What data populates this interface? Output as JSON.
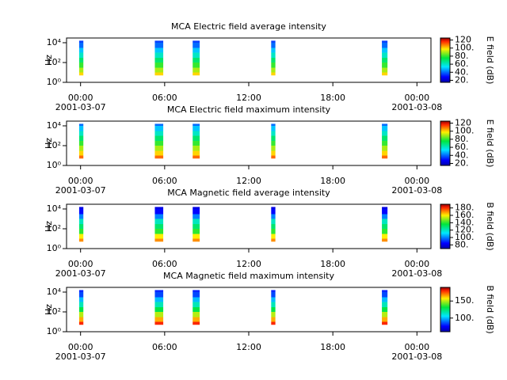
{
  "chart_data": [
    {
      "type": "spectrogram",
      "title": "MCA  Electric field average intensity",
      "ylabel": "Hz",
      "clabel": "E field (dB)",
      "xlim": [
        -1,
        25
      ],
      "xticks": [
        {
          "value": 0,
          "label": "00:00"
        },
        {
          "value": 6,
          "label": "06:00"
        },
        {
          "value": 12,
          "label": "12:00"
        },
        {
          "value": 18,
          "label": "18:00"
        },
        {
          "value": 24,
          "label": "00:00"
        }
      ],
      "x_date_labels": [
        {
          "value": 0,
          "label": "2001-03-07"
        },
        {
          "value": 24,
          "label": "2001-03-08"
        }
      ],
      "ylim": [
        1,
        30000
      ],
      "log_y": true,
      "yticks": [
        {
          "value": 1,
          "label": "10⁰"
        },
        {
          "value": 100,
          "label": "10²"
        },
        {
          "value": 10000,
          "label": "10⁴"
        }
      ],
      "clim": [
        15,
        125
      ],
      "cticks": [
        {
          "value": 20,
          "label": "20."
        },
        {
          "value": 40,
          "label": "40."
        },
        {
          "value": 60,
          "label": "60."
        },
        {
          "value": 80,
          "label": "80."
        },
        {
          "value": 100,
          "label": "100."
        },
        {
          "value": 120,
          "label": "120"
        }
      ],
      "bursts": [
        {
          "start": -0.1,
          "end": 0.2
        },
        {
          "start": 5.3,
          "end": 5.9
        },
        {
          "start": 8.0,
          "end": 8.5
        },
        {
          "start": 13.6,
          "end": 13.9
        },
        {
          "start": 21.5,
          "end": 21.9
        }
      ],
      "freq_bins": [
        5,
        10,
        30,
        100,
        300,
        1000,
        3000,
        10000,
        16000
      ],
      "values": [
        100,
        90,
        80,
        70,
        60,
        50,
        40,
        35
      ]
    },
    {
      "type": "spectrogram",
      "title": "MCA  Electric field maximum intensity",
      "ylabel": "Hz",
      "clabel": "E field (dB)",
      "xlim": [
        -1,
        25
      ],
      "xticks": [
        {
          "value": 0,
          "label": "00:00"
        },
        {
          "value": 6,
          "label": "06:00"
        },
        {
          "value": 12,
          "label": "12:00"
        },
        {
          "value": 18,
          "label": "18:00"
        },
        {
          "value": 24,
          "label": "00:00"
        }
      ],
      "x_date_labels": [
        {
          "value": 0,
          "label": "2001-03-07"
        },
        {
          "value": 24,
          "label": "2001-03-08"
        }
      ],
      "ylim": [
        1,
        30000
      ],
      "log_y": true,
      "yticks": [
        {
          "value": 1,
          "label": "10⁰"
        },
        {
          "value": 100,
          "label": "10²"
        },
        {
          "value": 10000,
          "label": "10⁴"
        }
      ],
      "clim": [
        15,
        125
      ],
      "cticks": [
        {
          "value": 20,
          "label": "20."
        },
        {
          "value": 40,
          "label": "40."
        },
        {
          "value": 60,
          "label": "60."
        },
        {
          "value": 80,
          "label": "80."
        },
        {
          "value": 100,
          "label": "100."
        },
        {
          "value": 120,
          "label": "120"
        }
      ],
      "bursts": [
        {
          "start": -0.1,
          "end": 0.2
        },
        {
          "start": 5.3,
          "end": 5.9
        },
        {
          "start": 8.0,
          "end": 8.5
        },
        {
          "start": 13.6,
          "end": 13.9
        },
        {
          "start": 21.5,
          "end": 21.9
        }
      ],
      "freq_bins": [
        5,
        10,
        30,
        100,
        300,
        1000,
        3000,
        10000,
        16000
      ],
      "values": [
        110,
        100,
        90,
        80,
        70,
        60,
        50,
        40
      ]
    },
    {
      "type": "spectrogram",
      "title": "MCA  Magnetic field average intensity",
      "ylabel": "Hz",
      "clabel": "B field (dB)",
      "xlim": [
        -1,
        25
      ],
      "xticks": [
        {
          "value": 0,
          "label": "00:00"
        },
        {
          "value": 6,
          "label": "06:00"
        },
        {
          "value": 12,
          "label": "12:00"
        },
        {
          "value": 18,
          "label": "18:00"
        },
        {
          "value": 24,
          "label": "00:00"
        }
      ],
      "x_date_labels": [
        {
          "value": 0,
          "label": "2001-03-07"
        },
        {
          "value": 24,
          "label": "2001-03-08"
        }
      ],
      "ylim": [
        1,
        30000
      ],
      "log_y": true,
      "yticks": [
        {
          "value": 1,
          "label": "10⁰"
        },
        {
          "value": 100,
          "label": "10²"
        },
        {
          "value": 10000,
          "label": "10⁴"
        }
      ],
      "clim": [
        70,
        190
      ],
      "cticks": [
        {
          "value": 80,
          "label": "80."
        },
        {
          "value": 100,
          "label": "100."
        },
        {
          "value": 120,
          "label": "120."
        },
        {
          "value": 140,
          "label": "140."
        },
        {
          "value": 160,
          "label": "160."
        },
        {
          "value": 180,
          "label": "180."
        }
      ],
      "bursts": [
        {
          "start": -0.1,
          "end": 0.2
        },
        {
          "start": 5.3,
          "end": 5.9
        },
        {
          "start": 8.0,
          "end": 8.5
        },
        {
          "start": 13.6,
          "end": 13.9
        },
        {
          "start": 21.5,
          "end": 21.9
        }
      ],
      "freq_bins": [
        5,
        10,
        30,
        100,
        300,
        1000,
        3000,
        10000,
        16000
      ],
      "values": [
        170,
        160,
        140,
        130,
        120,
        100,
        85,
        80
      ]
    },
    {
      "type": "spectrogram",
      "title": "MCA  Magnetic field maximum intensity",
      "ylabel": "Hz",
      "clabel": "B field (dB)",
      "xlim": [
        -1,
        25
      ],
      "xticks": [
        {
          "value": 0,
          "label": "00:00"
        },
        {
          "value": 6,
          "label": "06:00"
        },
        {
          "value": 12,
          "label": "12:00"
        },
        {
          "value": 18,
          "label": "18:00"
        },
        {
          "value": 24,
          "label": "00:00"
        }
      ],
      "x_date_labels": [
        {
          "value": 0,
          "label": "2001-03-07"
        },
        {
          "value": 24,
          "label": "2001-03-08"
        }
      ],
      "ylim": [
        1,
        30000
      ],
      "log_y": true,
      "yticks": [
        {
          "value": 1,
          "label": "10⁰"
        },
        {
          "value": 100,
          "label": "10²"
        },
        {
          "value": 10000,
          "label": "10⁴"
        }
      ],
      "clim": [
        60,
        190
      ],
      "cticks": [
        {
          "value": 100,
          "label": "100."
        },
        {
          "value": 150,
          "label": "150."
        }
      ],
      "bursts": [
        {
          "start": -0.1,
          "end": 0.2
        },
        {
          "start": 5.3,
          "end": 5.9
        },
        {
          "start": 8.0,
          "end": 8.5
        },
        {
          "start": 13.6,
          "end": 13.9
        },
        {
          "start": 21.5,
          "end": 21.9
        }
      ],
      "freq_bins": [
        5,
        10,
        30,
        100,
        300,
        1000,
        3000,
        10000,
        16000
      ],
      "values": [
        180,
        165,
        150,
        130,
        115,
        100,
        85,
        80
      ]
    }
  ]
}
